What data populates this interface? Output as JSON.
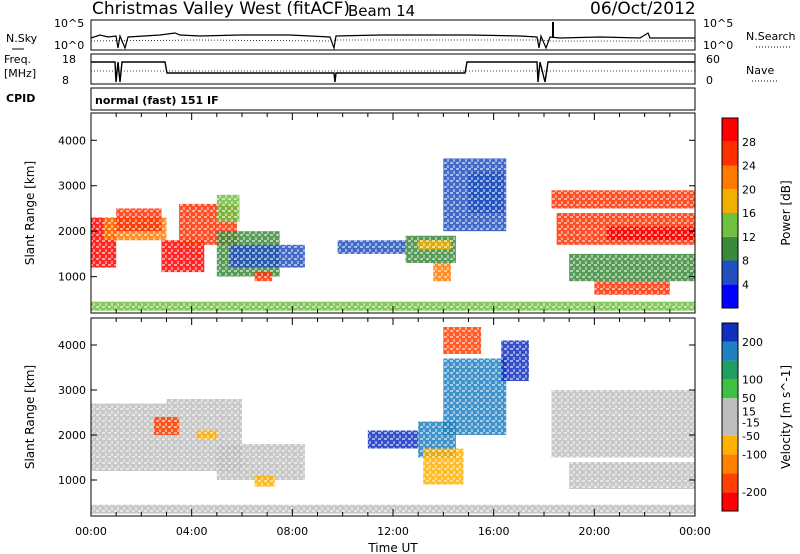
{
  "header": {
    "title": "Christmas Valley West (fitACF)",
    "beam": "Beam 14",
    "date": "06/Oct/2012"
  },
  "panels": {
    "nsky": {
      "label": "N.Sky",
      "ticks": [
        "10^5",
        "10^0"
      ],
      "right_label": "N.Search",
      "right_ticks": [
        "10^5",
        "10^0"
      ]
    },
    "freq": {
      "label": "Freq.",
      "unit": "[MHz]",
      "ticks": [
        "18",
        "8"
      ],
      "right_label": "Nave",
      "right_ticks": [
        "60",
        "0"
      ]
    },
    "cpid": {
      "label": "CPID",
      "value": "normal (fast) 151 IF"
    }
  },
  "x_ticks": [
    "00:00",
    "04:00",
    "08:00",
    "12:00",
    "16:00",
    "20:00",
    "00:00"
  ],
  "x_label": "Time UT",
  "colors": {
    "power_scale": [
      "#0000ff",
      "#2050c0",
      "#3a8a3a",
      "#70c040",
      "#f0b000",
      "#ff7a00",
      "#ff3000",
      "#ff0000"
    ],
    "velocity_scale": [
      "#ff0000",
      "#ff4000",
      "#ff8000",
      "#ffb000",
      "#bebebe",
      "#bebebe",
      "#40c040",
      "#20a060",
      "#2080c0",
      "#1030c0"
    ]
  },
  "chart_data": [
    {
      "type": "heatmap",
      "title": "",
      "xlabel": "Time UT",
      "ylabel": "Slant Range [km]",
      "ylim": [
        200,
        4600
      ],
      "xlim": [
        0,
        24
      ],
      "y_ticks": [
        1000,
        2000,
        3000,
        4000
      ],
      "colorbar": {
        "label": "Power [dB]",
        "ticks": [
          4,
          8,
          12,
          16,
          20,
          24,
          28
        ],
        "range": [
          0,
          32
        ]
      },
      "regions": [
        {
          "t0": 0.0,
          "t1": 1.0,
          "r0": 1200,
          "r1": 2300,
          "level": 28
        },
        {
          "t0": 0.5,
          "t1": 3.0,
          "r0": 1800,
          "r1": 2300,
          "level": 20
        },
        {
          "t0": 1.0,
          "t1": 2.8,
          "r0": 2000,
          "r1": 2500,
          "level": 24
        },
        {
          "t0": 2.8,
          "t1": 4.5,
          "r0": 1100,
          "r1": 1800,
          "level": 28
        },
        {
          "t0": 3.5,
          "t1": 5.8,
          "r0": 1700,
          "r1": 2600,
          "level": 24
        },
        {
          "t0": 5.0,
          "t1": 5.9,
          "r0": 2200,
          "r1": 2800,
          "level": 12
        },
        {
          "t0": 5.0,
          "t1": 7.5,
          "r0": 1000,
          "r1": 2000,
          "level": 8
        },
        {
          "t0": 6.5,
          "t1": 7.2,
          "r0": 900,
          "r1": 1100,
          "level": 24
        },
        {
          "t0": 5.5,
          "t1": 8.5,
          "r0": 1200,
          "r1": 1700,
          "level": 4
        },
        {
          "t0": 9.8,
          "t1": 12.5,
          "r0": 1500,
          "r1": 1800,
          "level": 6
        },
        {
          "t0": 12.5,
          "t1": 14.5,
          "r0": 1300,
          "r1": 1900,
          "level": 10
        },
        {
          "t0": 13.0,
          "t1": 14.3,
          "r0": 1600,
          "r1": 1800,
          "level": 16
        },
        {
          "t0": 13.6,
          "t1": 14.3,
          "r0": 900,
          "r1": 1300,
          "level": 20
        },
        {
          "t0": 14.0,
          "t1": 16.5,
          "r0": 2000,
          "r1": 3600,
          "level": 6
        },
        {
          "t0": 15.0,
          "t1": 16.4,
          "r0": 2400,
          "r1": 3300,
          "level": 4
        },
        {
          "t0": 18.3,
          "t1": 24.0,
          "r0": 2500,
          "r1": 2900,
          "level": 24
        },
        {
          "t0": 18.5,
          "t1": 24.0,
          "r0": 1700,
          "r1": 2400,
          "level": 24
        },
        {
          "t0": 20.5,
          "t1": 24.0,
          "r0": 1800,
          "r1": 2100,
          "level": 28
        },
        {
          "t0": 19.0,
          "t1": 24.0,
          "r0": 900,
          "r1": 1500,
          "level": 8
        },
        {
          "t0": 20.0,
          "t1": 23.0,
          "r0": 600,
          "r1": 900,
          "level": 24
        },
        {
          "t0": 0.0,
          "t1": 24.0,
          "r0": 250,
          "r1": 450,
          "level": 14
        }
      ]
    },
    {
      "type": "heatmap",
      "title": "",
      "xlabel": "Time UT",
      "ylabel": "Slant Range [km]",
      "ylim": [
        200,
        4600
      ],
      "xlim": [
        0,
        24
      ],
      "y_ticks": [
        1000,
        2000,
        3000,
        4000
      ],
      "colorbar": {
        "label": "Velocity [m s^-1]",
        "ticks": [
          200,
          100,
          50,
          15,
          -15,
          -50,
          -100,
          -200
        ],
        "range": [
          -250,
          250
        ]
      },
      "regions": [
        {
          "t0": 0.0,
          "t1": 3.0,
          "r0": 1200,
          "r1": 2700,
          "level": 0
        },
        {
          "t0": 3.0,
          "t1": 6.0,
          "r0": 1200,
          "r1": 2800,
          "level": 0
        },
        {
          "t0": 4.2,
          "t1": 5.0,
          "r0": 1900,
          "r1": 2100,
          "level": -80
        },
        {
          "t0": 2.5,
          "t1": 3.5,
          "r0": 2000,
          "r1": 2400,
          "level": -200
        },
        {
          "t0": 5.0,
          "t1": 8.5,
          "r0": 1000,
          "r1": 1800,
          "level": -40
        },
        {
          "t0": 6.5,
          "t1": 7.3,
          "r0": 850,
          "r1": 1100,
          "level": -60
        },
        {
          "t0": 11.0,
          "t1": 13.0,
          "r0": 1700,
          "r1": 2100,
          "level": 200
        },
        {
          "t0": 13.0,
          "t1": 14.5,
          "r0": 1500,
          "r1": 2300,
          "level": 150
        },
        {
          "t0": 13.2,
          "t1": 14.8,
          "r0": 900,
          "r1": 1700,
          "level": -60
        },
        {
          "t0": 14.0,
          "t1": 16.5,
          "r0": 2000,
          "r1": 3700,
          "level": 150
        },
        {
          "t0": 16.3,
          "t1": 17.4,
          "r0": 3200,
          "r1": 4100,
          "level": 220
        },
        {
          "t0": 14.0,
          "t1": 15.5,
          "r0": 3800,
          "r1": 4400,
          "level": -200
        },
        {
          "t0": 18.3,
          "t1": 24.0,
          "r0": 1500,
          "r1": 3000,
          "level": 0
        },
        {
          "t0": 19.0,
          "t1": 24.0,
          "r0": 800,
          "r1": 1400,
          "level": 0
        },
        {
          "t0": 0.0,
          "t1": 24.0,
          "r0": 250,
          "r1": 450,
          "level": 40
        }
      ]
    }
  ]
}
